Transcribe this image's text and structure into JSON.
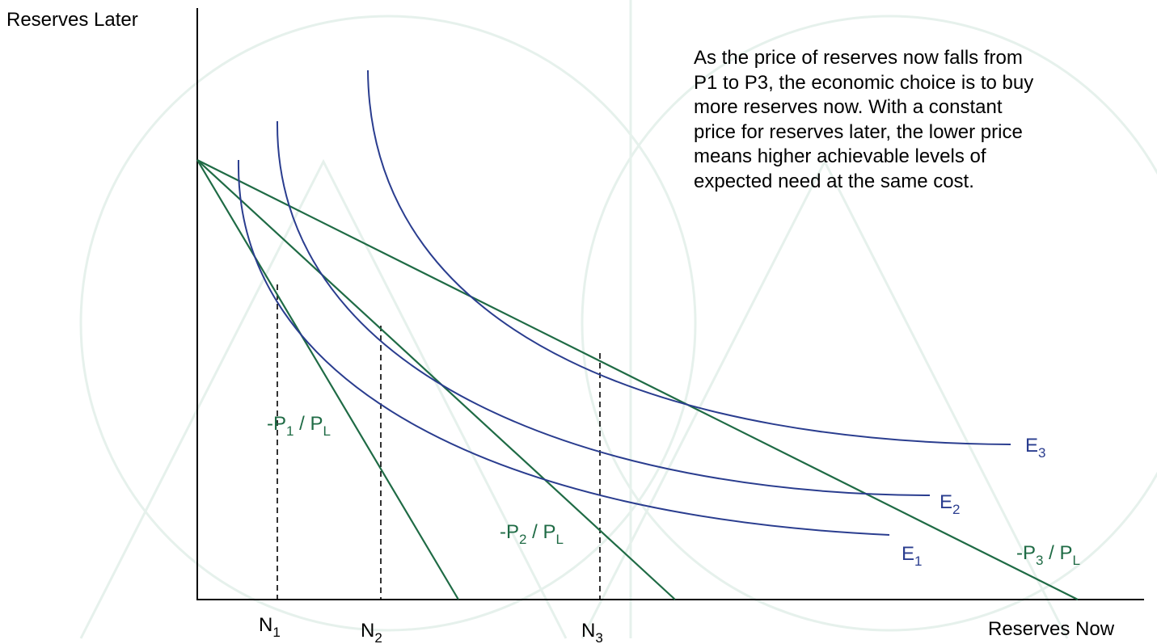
{
  "axes": {
    "y_label": "Reserves Later",
    "x_label": "Reserves Now"
  },
  "caption": "As the price of reserves now falls from\nP1 to P3, the economic choice is to buy\nmore reserves now. With a constant\nprice for reserves later, the lower price\nmeans higher achievable levels of\nexpected need at the same cost.",
  "budget_lines": [
    {
      "label_main": "-P",
      "label_sub1": "1",
      "label_mid": " / P",
      "label_sub2": "L"
    },
    {
      "label_main": "-P",
      "label_sub1": "2",
      "label_mid": " / P",
      "label_sub2": "L"
    },
    {
      "label_main": "-P",
      "label_sub1": "3",
      "label_mid": " / P",
      "label_sub2": "L"
    }
  ],
  "curves": [
    {
      "label_main": "E",
      "label_sub": "1"
    },
    {
      "label_main": "E",
      "label_sub": "2"
    },
    {
      "label_main": "E",
      "label_sub": "3"
    }
  ],
  "quantities": [
    {
      "label_main": "N",
      "label_sub": "1"
    },
    {
      "label_main": "N",
      "label_sub": "2"
    },
    {
      "label_main": "N",
      "label_sub": "3"
    }
  ],
  "colors": {
    "curve": "#2a3d8f",
    "budget_line": "#1f6b45",
    "axis": "#000000",
    "text": "#000000",
    "watermark": "#e6f1ec"
  }
}
